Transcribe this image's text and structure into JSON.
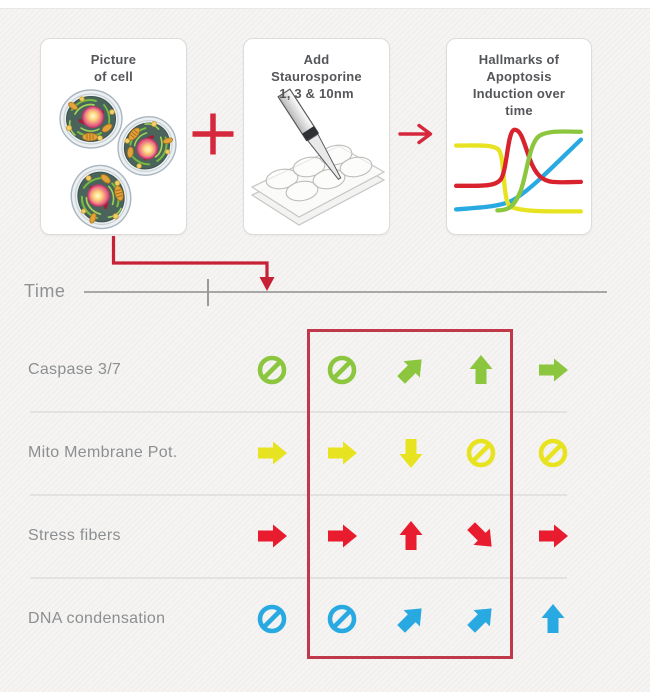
{
  "workflow": {
    "steps": [
      {
        "id": "picture-of-cell",
        "title": "Picture\nof cell"
      },
      {
        "id": "add-staurosporine",
        "title": "Add\nStaurosporine\n1, 3 & 10nm"
      },
      {
        "id": "hallmarks-of-apoptosis",
        "title": "Hallmarks of\nApoptosis\nInduction over\ntime"
      }
    ],
    "plus_symbol": "+",
    "arrow_symbol": "→"
  },
  "timeline": {
    "label": "Time"
  },
  "table": {
    "rows": [
      {
        "label": "Caspase 3/7",
        "color": "#8cc63e",
        "icons": [
          "none",
          "none",
          "up-right",
          "up",
          "right"
        ]
      },
      {
        "label": "Mito Membrane Pot.",
        "color": "#e7e320",
        "icons": [
          "right",
          "right",
          "down",
          "none",
          "none"
        ]
      },
      {
        "label": "Stress fibers",
        "color": "#e81c2e",
        "icons": [
          "right",
          "right",
          "up",
          "down-right",
          "right"
        ]
      },
      {
        "label": "DNA condensation",
        "color": "#29a9e1",
        "icons": [
          "none",
          "none",
          "up-right",
          "up-right",
          "up"
        ]
      }
    ],
    "highlighted_columns": [
      2,
      3,
      4
    ]
  },
  "chart_data": {
    "type": "line",
    "title": "Hallmarks of Apoptosis Induction over time",
    "axes_visible": false,
    "legend": false,
    "x_normalized": [
      0,
      0.15,
      0.3,
      0.4,
      0.5,
      0.6,
      0.75,
      1
    ],
    "series": [
      {
        "name": "yellow-hallmark",
        "color": "#e7e320",
        "values": [
          0.75,
          0.75,
          0.73,
          0.45,
          0.12,
          0.08,
          0.08,
          0.07
        ]
      },
      {
        "name": "red-hallmark",
        "color": "#e81c2e",
        "values": [
          0.38,
          0.38,
          0.42,
          0.75,
          0.92,
          0.55,
          0.43,
          0.43
        ]
      },
      {
        "name": "green-hallmark",
        "color": "#8cc63e",
        "values": [
          null,
          null,
          null,
          0.12,
          0.35,
          0.78,
          0.88,
          0.89
        ]
      },
      {
        "name": "blue-hallmark",
        "color": "#29a9e1",
        "values": [
          0.15,
          0.16,
          0.18,
          0.22,
          0.3,
          0.45,
          0.65,
          0.83
        ]
      }
    ]
  },
  "colors": {
    "accent_red": "#d6283c",
    "connector_red": "#c62134",
    "highlight_box": "#c0394b",
    "green": "#8cc63e",
    "yellow": "#e7e320",
    "red": "#e81c2e",
    "blue": "#29a9e1"
  }
}
